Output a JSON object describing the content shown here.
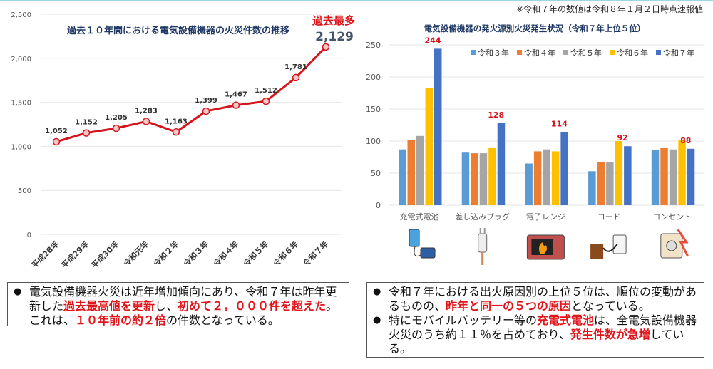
{
  "note": "※令和７年の数値は令和８年１月２日時点速報値",
  "chart_data": [
    {
      "type": "line",
      "title": "過去１０年間における電気設備機器の火災件数の推移",
      "categories": [
        "平成28年",
        "平成29年",
        "平成30年",
        "令和元年",
        "令和２年",
        "令和３年",
        "令和４年",
        "令和５年",
        "令和６年",
        "令和７年"
      ],
      "values": [
        1052,
        1152,
        1205,
        1283,
        1163,
        1399,
        1467,
        1512,
        1781,
        2129
      ],
      "data_labels": [
        "1,052",
        "1,152",
        "1,205",
        "1,283",
        "1,163",
        "1,399",
        "1,467",
        "1,512",
        "1,781",
        "2,129"
      ],
      "annotation": "過去最多",
      "ylim": [
        0,
        2500
      ],
      "yticks": [
        "0",
        "500",
        "1,000",
        "1,500",
        "2,000",
        "2,500"
      ],
      "grid": true,
      "color": "#d4141c"
    },
    {
      "type": "bar",
      "title": "電気設備機器の発火源別火災発生状況（令和７年上位５位）",
      "categories": [
        "充電式電池",
        "差し込みプラグ",
        "電子レンジ",
        "コード",
        "コンセント"
      ],
      "series": [
        {
          "name": "令和３年",
          "color": "#5b9bd5",
          "values": [
            87,
            82,
            65,
            53,
            86
          ]
        },
        {
          "name": "令和４年",
          "color": "#ed7d31",
          "values": [
            102,
            81,
            84,
            67,
            89
          ]
        },
        {
          "name": "令和５年",
          "color": "#a5a5a5",
          "values": [
            108,
            81,
            87,
            67,
            87
          ]
        },
        {
          "name": "令和６年",
          "color": "#ffc000",
          "values": [
            183,
            89,
            84,
            100,
            101
          ]
        },
        {
          "name": "令和７年",
          "color": "#4472c4",
          "values": [
            244,
            128,
            114,
            92,
            88
          ]
        }
      ],
      "data_labels": [
        "244",
        "128",
        "114",
        "92",
        "88"
      ],
      "ylim": [
        0,
        250
      ],
      "yticks": [
        "0",
        "50",
        "100",
        "150",
        "200",
        "250"
      ],
      "grid": true,
      "legend": "top-right",
      "icons": [
        "mobile-battery-icon",
        "plug-icon",
        "microwave-icon",
        "cord-outlet-icon",
        "sparking-outlet-icon"
      ]
    }
  ],
  "left_box": [
    [
      {
        "t": "電気設備機器火災は近年増加傾向にあり、令和７年は昨年更新した"
      },
      {
        "t": "過去最高値を更新",
        "r": 1
      },
      {
        "t": "し、"
      },
      {
        "t": "初めて２，０００件を超えた",
        "r": 1
      },
      {
        "t": "。これは、"
      },
      {
        "t": "１０年前の約２倍",
        "r": 1
      },
      {
        "t": "の件数となっている。"
      }
    ]
  ],
  "right_box": [
    [
      {
        "t": "令和７年における出火原因別の上位５位は、順位の変動があるものの、"
      },
      {
        "t": "昨年と同一の５つの原因",
        "r": 1
      },
      {
        "t": "となっている。"
      }
    ],
    [
      {
        "t": "特にモバイルバッテリー等の"
      },
      {
        "t": "充電式電池",
        "r": 1
      },
      {
        "t": "は、全電気設備機器火災のうち約１１％を占めており、"
      },
      {
        "t": "発生件数が急増",
        "r": 1
      },
      {
        "t": "している。"
      }
    ]
  ]
}
